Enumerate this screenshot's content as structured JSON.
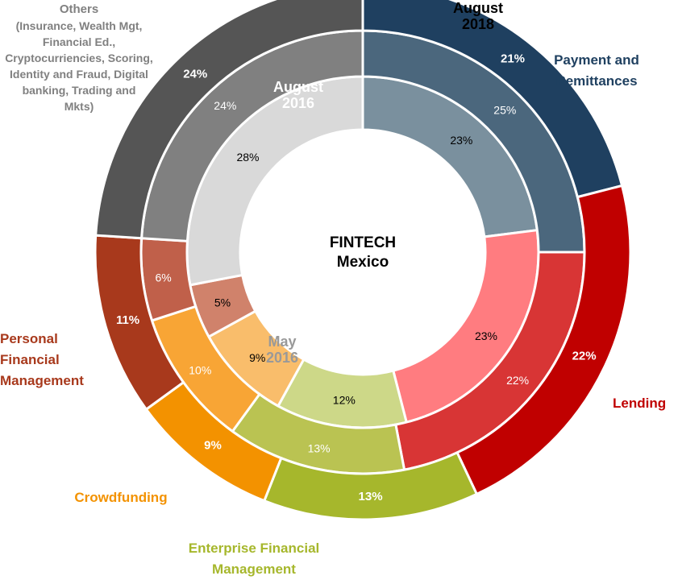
{
  "chart_data": {
    "type": "donut",
    "center_title": [
      "FINTECH",
      "Mexico"
    ],
    "rings": [
      {
        "name": "May 2016",
        "title_lines": [
          "May",
          "2016"
        ],
        "values": [
          23,
          23,
          12,
          9,
          5,
          28
        ],
        "labels": [
          "23%",
          "23%",
          "12%",
          "9%",
          "5%",
          "28%"
        ]
      },
      {
        "name": "August 2016",
        "title_lines": [
          "August",
          "2016"
        ],
        "values": [
          25,
          22,
          13,
          10,
          6,
          24
        ],
        "labels": [
          "25%",
          "22%",
          "13%",
          "10%",
          "6%",
          "24%"
        ]
      },
      {
        "name": "August 2018",
        "title_lines": [
          "August",
          "2018"
        ],
        "values": [
          21,
          22,
          13,
          9,
          11,
          24
        ],
        "labels": [
          "21%",
          "22%",
          "13%",
          "9%",
          "11%",
          "24%"
        ]
      }
    ],
    "categories": [
      {
        "name": "Payment and Remittances",
        "lines": [
          "Payment and",
          "Remittances"
        ],
        "color": "#1f4060"
      },
      {
        "name": "Lending",
        "lines": [
          "Lending"
        ],
        "color": "#c00000"
      },
      {
        "name": "Enterprise Financial Management",
        "lines": [
          "Enterprise Financial",
          "Management"
        ],
        "color": "#a6b72c"
      },
      {
        "name": "Crowdfunding",
        "lines": [
          "Crowdfunding"
        ],
        "color": "#f39200"
      },
      {
        "name": "Personal Financial Management",
        "lines": [
          "Personal",
          "Financial",
          "Management"
        ],
        "color": "#a8391c"
      },
      {
        "name": "Others (Insurance, Wealth Mgt, Financial Ed., Cryptocurriencies, Scoring, Identity and Fraud, Digital banking, Trading and Mkts)",
        "lines": [
          "Others",
          "(Insurance, Wealth Mgt,",
          "Financial Ed.,",
          "Cryptocurriencies, Scoring,",
          "Identity and Fraud, Digital",
          "banking, Trading and",
          "Mkts)"
        ],
        "color": "#555555"
      }
    ],
    "ring_colors": [
      [
        "#7a909e",
        "#ff7c80",
        "#cdd888",
        "#f9bd6b",
        "#d0826b",
        "#d9d9d9"
      ],
      [
        "#4b677d",
        "#d83535",
        "#bac352",
        "#f8a535",
        "#c0604a",
        "#808080"
      ],
      [
        "#1f4060",
        "#c00000",
        "#a6b72c",
        "#f39200",
        "#a8391c",
        "#555555"
      ]
    ],
    "label_colors": [
      [
        "#000000",
        "#000000",
        "#000000",
        "#000000",
        "#000000",
        "#000000"
      ],
      [
        "#ffffff",
        "#ffffff",
        "#ffffff",
        "#ffffff",
        "#ffffff",
        "#ffffff"
      ],
      [
        "#ffffff",
        "#ffffff",
        "#ffffff",
        "#ffffff",
        "#ffffff",
        "#ffffff"
      ]
    ],
    "title_colors": [
      "#999999",
      "#ffffff",
      "#000000"
    ]
  }
}
